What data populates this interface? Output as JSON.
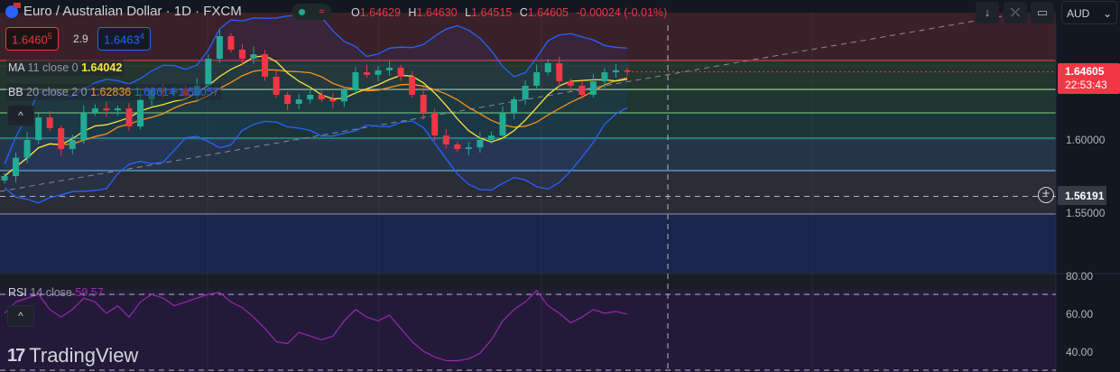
{
  "header": {
    "symbol": "Euro / Australian Dollar · 1D · FXCM",
    "status_icon": "market-open-dot",
    "wave_icon": "≈",
    "ohlc": {
      "o_label": "O",
      "o": "1.64629",
      "h_label": "H",
      "h": "1.64630",
      "l_label": "L",
      "l": "1.64515",
      "c_label": "C",
      "c": "1.64605",
      "change": "-0.00024 (-0.01%)"
    }
  },
  "quote": {
    "sell": "1.6460",
    "sell_sup": "5",
    "spread": "2.9",
    "buy": "1.6463",
    "buy_sup": "4"
  },
  "indicators": {
    "ma": {
      "name": "MA",
      "params": "11 close 0",
      "value": "1.64042"
    },
    "bb": {
      "name": "BB",
      "params": "20 close 2 0",
      "basis": "1.62836",
      "upper": "1.66614",
      "lower": "1.59057"
    },
    "rsi": {
      "name": "RSI",
      "params": "14 close",
      "value": "59.57"
    }
  },
  "toolbar": {
    "down_icon": "↓",
    "collapse_icon": "⤫",
    "fullscreen_icon": "▭",
    "currency": "AUD",
    "chevron": "⌄",
    "collapse_pane": "^"
  },
  "price_axis": {
    "labels": [
      "1.60000",
      "1.55000"
    ],
    "last_price": "1.64605",
    "countdown": "22:53:43",
    "crosshair_price": "1.56191"
  },
  "rsi_axis": {
    "labels": [
      "80.00",
      "60.00",
      "40.00"
    ]
  },
  "brand": "TradingView",
  "colors": {
    "up": "#22ab94",
    "down": "#f23645",
    "ma": "#f5e63b",
    "bb_basis": "#f7931a",
    "bb_band": "#2962ff",
    "rsi": "#9c27b0"
  },
  "chart_data": {
    "type": "candlestick",
    "closes": [
      1.5756,
      1.588,
      1.6,
      1.6152,
      1.608,
      1.5939,
      1.6,
      1.6183,
      1.6213,
      1.62,
      1.6213,
      1.6091,
      1.6274,
      1.6335,
      1.632,
      1.6335,
      1.63,
      1.6366,
      1.6549,
      1.6701,
      1.661,
      1.6549,
      1.6579,
      1.6427,
      1.6305,
      1.6244,
      1.6274,
      1.6305,
      1.6274,
      1.626,
      1.6335,
      1.6457,
      1.644,
      1.647,
      1.6488,
      1.6427,
      1.6305,
      1.6183,
      1.603,
      1.597,
      1.5939,
      1.595,
      1.6,
      1.603,
      1.6183,
      1.6274,
      1.6366,
      1.6457,
      1.6518,
      1.6396,
      1.6366,
      1.6305,
      1.6396,
      1.6457,
      1.647,
      1.64605
    ],
    "rsi": [
      60,
      66,
      68,
      70,
      62,
      58,
      62,
      68,
      66,
      60,
      64,
      58,
      66,
      70,
      68,
      64,
      66,
      68,
      70,
      71,
      66,
      63,
      58,
      52,
      45,
      44,
      50,
      48,
      46,
      48,
      56,
      62,
      58,
      56,
      59,
      52,
      45,
      40,
      37,
      35,
      35,
      36,
      39,
      46,
      56,
      62,
      66,
      72,
      64,
      60,
      55,
      58,
      62,
      60,
      61,
      59.57
    ],
    "hlines": [
      1.6537,
      1.6341,
      1.6183,
      1.6012,
      1.5793,
      1.55
    ],
    "crosshair_price": 1.56191,
    "price_range": [
      1.51,
      1.686
    ],
    "rsi_range": [
      30,
      82
    ]
  }
}
